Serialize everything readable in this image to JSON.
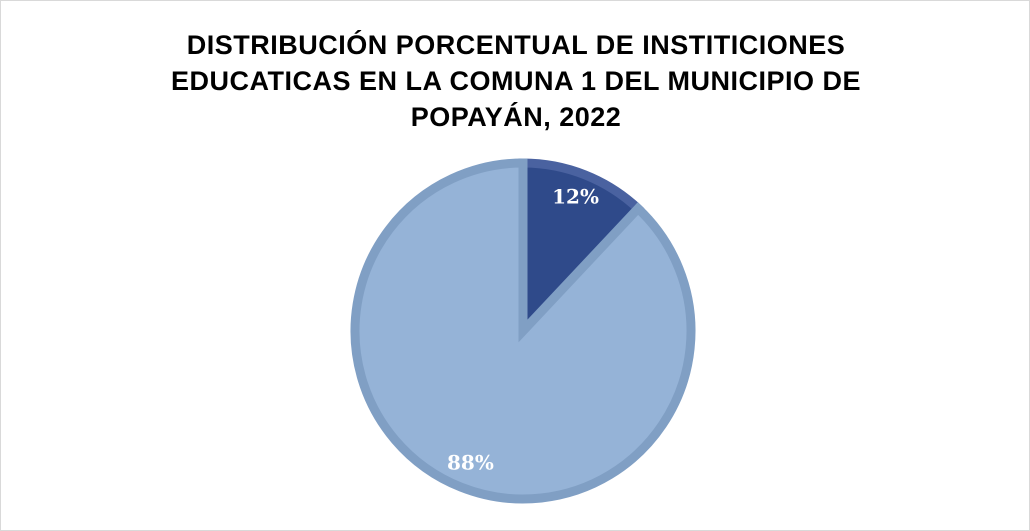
{
  "chart_data": {
    "type": "pie",
    "title": "DISTRIBUCIÓN PORCENTUAL DE INSTITICIONES EDUCATICAS EN LA COMUNA 1 DEL MUNICIPIO DE POPAYÁN, 2022",
    "values": [
      12,
      88
    ],
    "value_labels": [
      "12%",
      "88%"
    ],
    "colors": [
      "#2f4a8a",
      "#95b3d7"
    ],
    "border_colors": [
      "#4a62a0",
      "#809fc4"
    ]
  }
}
